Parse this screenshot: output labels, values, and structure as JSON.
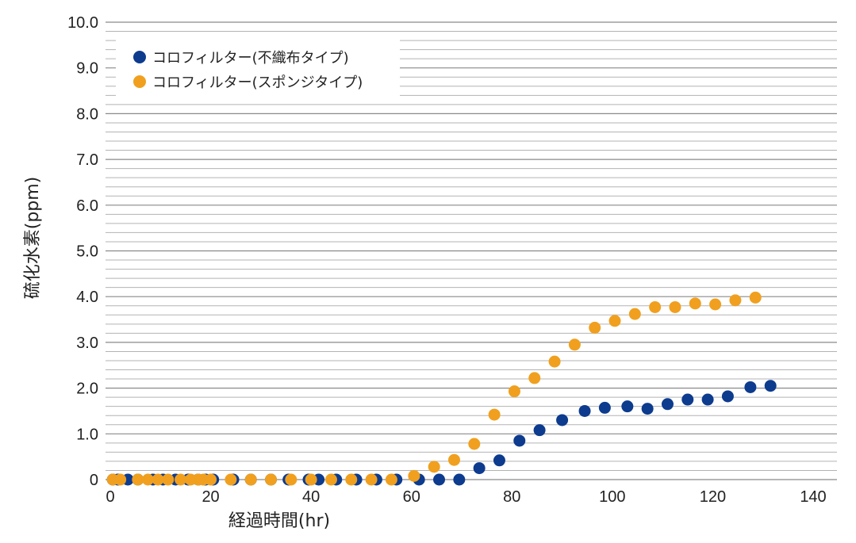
{
  "chart_data": {
    "type": "scatter",
    "xlabel": "経過時間(hr)",
    "ylabel": "硫化水素(ppm)",
    "xlim": [
      0,
      140
    ],
    "ylim": [
      0,
      10
    ],
    "x_ticks": [
      "0",
      "20",
      "40",
      "60",
      "80",
      "100",
      "120",
      "140"
    ],
    "y_ticks": [
      "0",
      "1.0",
      "2.0",
      "3.0",
      "4.0",
      "5.0",
      "6.0",
      "7.0",
      "8.0",
      "9.0",
      "10.0"
    ],
    "grid": true,
    "legend_position": "top-left",
    "series": [
      {
        "name": "コロフィルター(不織布タイプ)",
        "color": "#0d3b8e",
        "points": [
          [
            0.5,
            0
          ],
          [
            1.5,
            0
          ],
          [
            3.5,
            0
          ],
          [
            5.5,
            0
          ],
          [
            8.5,
            0
          ],
          [
            10.5,
            0
          ],
          [
            13,
            0
          ],
          [
            15.5,
            0
          ],
          [
            17.5,
            0
          ],
          [
            19,
            0
          ],
          [
            20.5,
            0
          ],
          [
            24.5,
            0
          ],
          [
            28,
            0
          ],
          [
            32,
            0
          ],
          [
            35.5,
            0
          ],
          [
            39.5,
            0
          ],
          [
            41.5,
            0
          ],
          [
            45,
            0
          ],
          [
            49,
            0
          ],
          [
            53,
            0
          ],
          [
            57,
            0
          ],
          [
            61.5,
            0
          ],
          [
            65.5,
            0
          ],
          [
            69.5,
            0
          ],
          [
            73.5,
            0.25
          ],
          [
            77.5,
            0.42
          ],
          [
            81.5,
            0.85
          ],
          [
            85.5,
            1.08
          ],
          [
            90,
            1.3
          ],
          [
            94.5,
            1.5
          ],
          [
            98.5,
            1.57
          ],
          [
            103,
            1.6
          ],
          [
            107,
            1.55
          ],
          [
            111,
            1.65
          ],
          [
            115,
            1.75
          ],
          [
            119,
            1.75
          ],
          [
            123,
            1.82
          ],
          [
            127.5,
            2.02
          ],
          [
            131.5,
            2.05
          ]
        ]
      },
      {
        "name": "コロフィルター(スポンジタイプ)",
        "color": "#f0a01e",
        "points": [
          [
            0.5,
            0
          ],
          [
            2,
            0
          ],
          [
            5.5,
            0
          ],
          [
            7.5,
            0
          ],
          [
            9.5,
            0
          ],
          [
            11.5,
            0
          ],
          [
            14,
            0
          ],
          [
            16,
            0
          ],
          [
            17.5,
            0
          ],
          [
            18.5,
            0
          ],
          [
            20,
            0
          ],
          [
            24,
            0
          ],
          [
            28,
            0
          ],
          [
            32,
            0
          ],
          [
            36,
            0
          ],
          [
            40,
            0
          ],
          [
            44,
            0
          ],
          [
            48,
            0
          ],
          [
            52,
            0
          ],
          [
            56,
            0
          ],
          [
            60.5,
            0.08
          ],
          [
            64.5,
            0.28
          ],
          [
            68.5,
            0.43
          ],
          [
            72.5,
            0.78
          ],
          [
            76.5,
            1.42
          ],
          [
            80.5,
            1.93
          ],
          [
            84.5,
            2.22
          ],
          [
            88.5,
            2.58
          ],
          [
            92.5,
            2.95
          ],
          [
            96.5,
            3.32
          ],
          [
            100.5,
            3.47
          ],
          [
            104.5,
            3.62
          ],
          [
            108.5,
            3.77
          ],
          [
            112.5,
            3.77
          ],
          [
            116.5,
            3.85
          ],
          [
            120.5,
            3.83
          ],
          [
            124.5,
            3.92
          ],
          [
            128.5,
            3.98
          ]
        ]
      }
    ]
  }
}
